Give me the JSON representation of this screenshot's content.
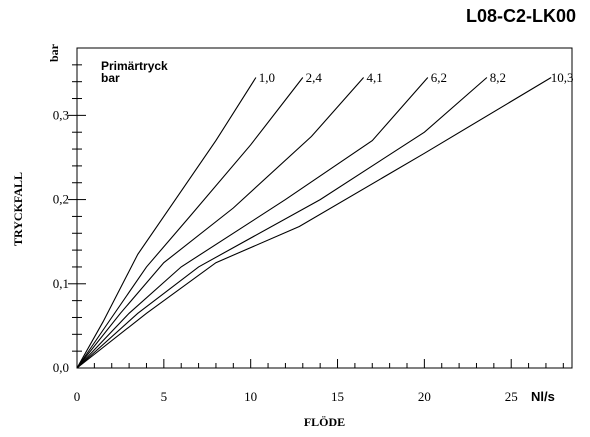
{
  "chart_data": {
    "type": "line",
    "code": "L08-C2-LK00",
    "xlabel": "FLÖDE",
    "x_unit": "Nl/s",
    "ylabel": "TRYCKFALL",
    "y_unit": "bar",
    "legend_title_line1": "Primärtryck",
    "legend_title_line2": "bar",
    "xlim": [
      0,
      28.5
    ],
    "ylim": [
      0,
      0.38
    ],
    "x_ticks": [
      0,
      5,
      10,
      15,
      20,
      25
    ],
    "x_tick_labels": [
      "0",
      "5",
      "10",
      "15",
      "20",
      "25"
    ],
    "y_ticks": [
      0,
      0.1,
      0.2,
      0.3
    ],
    "y_tick_labels": [
      "0,0",
      "0,1",
      "0,2",
      "0,3"
    ],
    "series": [
      {
        "name": "1,0",
        "x": [
          0,
          1.5,
          3.5,
          5.5,
          8.0,
          10.3
        ],
        "y": [
          0,
          0.055,
          0.135,
          0.195,
          0.27,
          0.345
        ]
      },
      {
        "name": "2,4",
        "x": [
          0,
          2.0,
          4.0,
          6.5,
          10.0,
          13.0
        ],
        "y": [
          0,
          0.06,
          0.12,
          0.18,
          0.265,
          0.345
        ]
      },
      {
        "name": "4,1",
        "x": [
          0,
          2.5,
          5.0,
          9.0,
          13.5,
          16.5
        ],
        "y": [
          0,
          0.065,
          0.125,
          0.19,
          0.275,
          0.345
        ]
      },
      {
        "name": "6,2",
        "x": [
          0,
          3.0,
          6.0,
          12.0,
          17.0,
          20.2
        ],
        "y": [
          0,
          0.065,
          0.12,
          0.2,
          0.27,
          0.345
        ]
      },
      {
        "name": "8,2",
        "x": [
          0,
          3.5,
          7.0,
          14.0,
          20.0,
          23.6
        ],
        "y": [
          0,
          0.065,
          0.12,
          0.2,
          0.28,
          0.345
        ]
      },
      {
        "name": "10,3",
        "x": [
          0,
          4.0,
          8.0,
          12.8,
          20.0,
          27.3
        ],
        "y": [
          0,
          0.065,
          0.125,
          0.168,
          0.255,
          0.345
        ]
      }
    ],
    "grid": false,
    "legend_position": "top-left"
  }
}
